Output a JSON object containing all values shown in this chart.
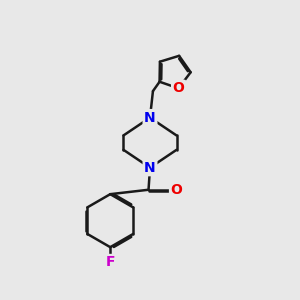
{
  "background_color": "#e8e8e8",
  "bond_color": "#1a1a1a",
  "nitrogen_color": "#0000ee",
  "oxygen_color": "#ee0000",
  "fluorine_color": "#cc00cc",
  "line_width": 1.8,
  "dbo": 0.055,
  "figsize": [
    3.0,
    3.0
  ],
  "dpi": 100,
  "xlim": [
    0,
    10
  ],
  "ylim": [
    0,
    10
  ]
}
